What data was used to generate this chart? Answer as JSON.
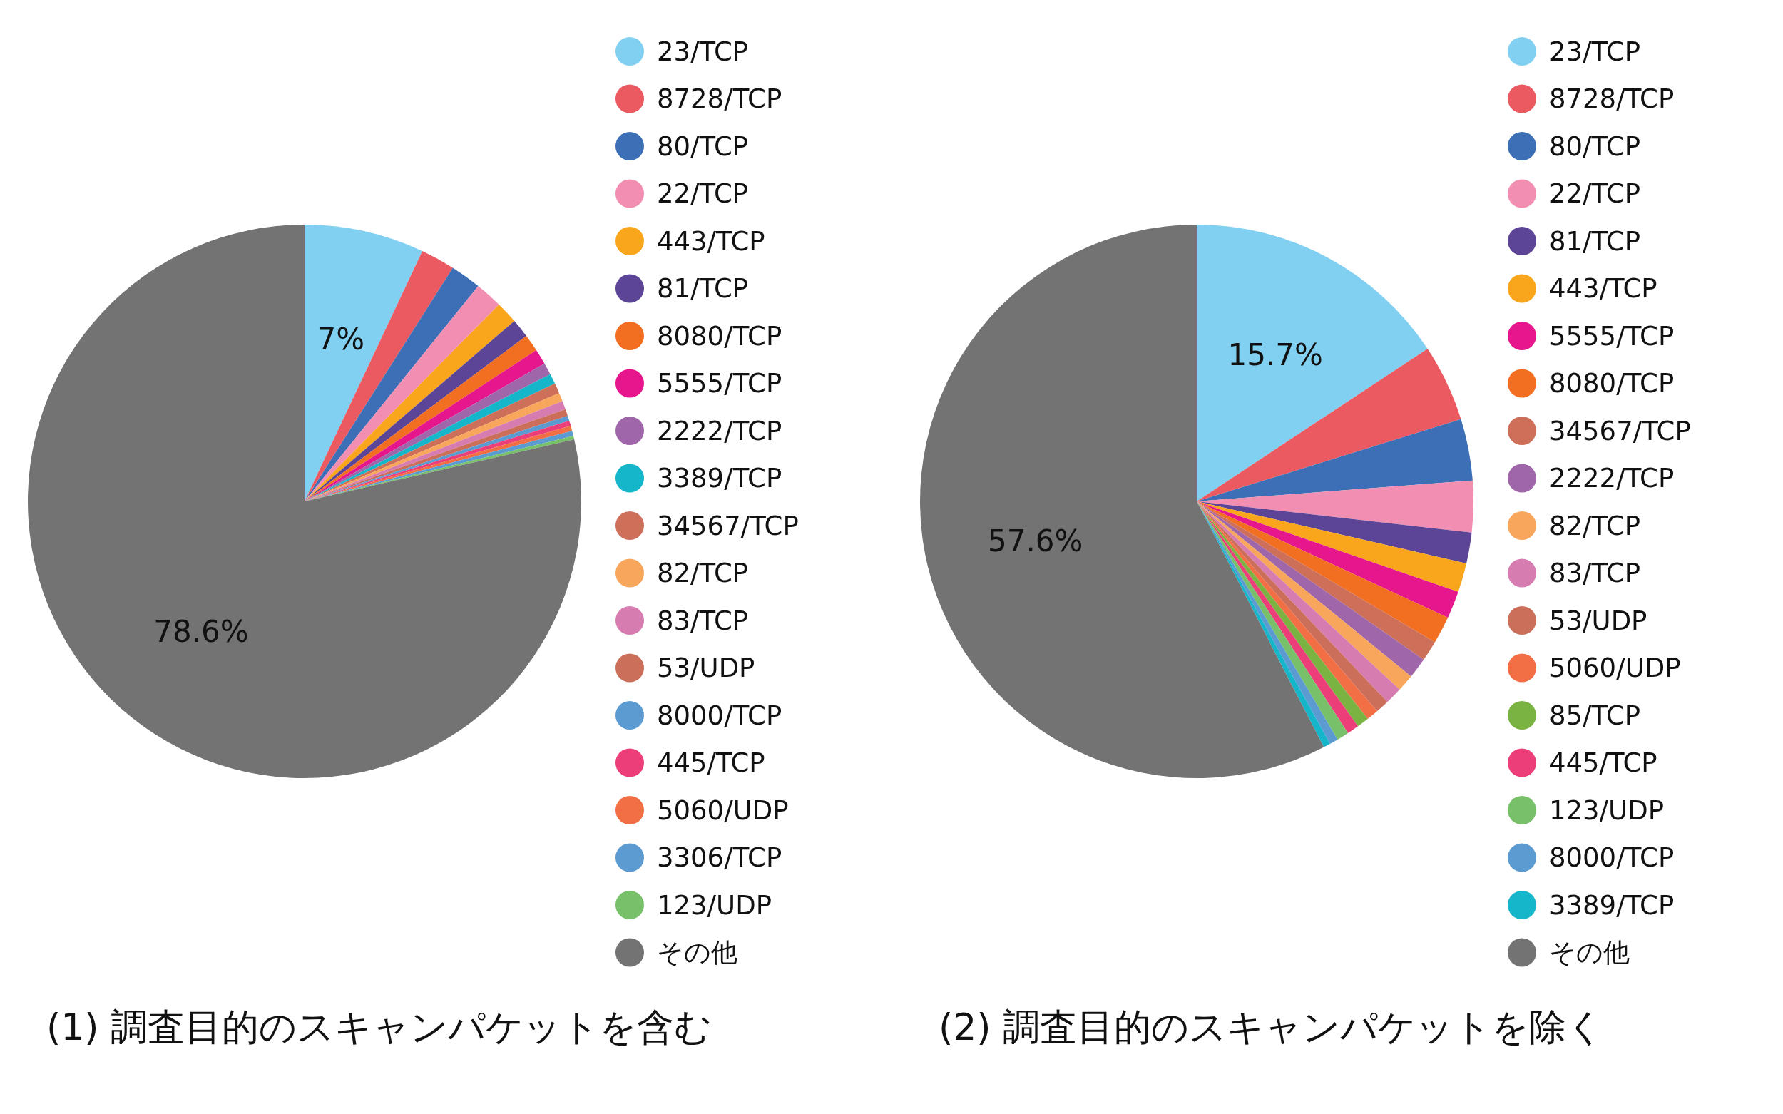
{
  "chart_data": [
    {
      "type": "pie",
      "title": "(1) 調査目的のスキャンパケットを含む",
      "legend": "right",
      "categories": [
        "23/TCP",
        "8728/TCP",
        "80/TCP",
        "22/TCP",
        "443/TCP",
        "81/TCP",
        "8080/TCP",
        "5555/TCP",
        "2222/TCP",
        "3389/TCP",
        "34567/TCP",
        "82/TCP",
        "83/TCP",
        "53/UDP",
        "8000/TCP",
        "445/TCP",
        "5060/UDP",
        "3306/TCP",
        "123/UDP",
        "その他"
      ],
      "values": [
        7,
        2.0,
        1.8,
        1.6,
        1.3,
        1.1,
        1.0,
        0.9,
        0.7,
        0.6,
        0.6,
        0.5,
        0.5,
        0.4,
        0.3,
        0.3,
        0.3,
        0.3,
        0.2,
        78.6
      ],
      "colors": [
        "#81d0f2",
        "#ec5a61",
        "#3c6fb6",
        "#f18eb1",
        "#f9a61c",
        "#5c4597",
        "#f26f22",
        "#e6168c",
        "#9f66a9",
        "#16b6ca",
        "#ce6f5a",
        "#f8a65c",
        "#d67cb0",
        "#cc6f5a",
        "#5b9bd1",
        "#ec3f7a",
        "#f26e45",
        "#5b9bd1",
        "#78c16a",
        "#737373"
      ],
      "value_labels": [
        "7%",
        null,
        null,
        null,
        null,
        null,
        null,
        null,
        null,
        null,
        null,
        null,
        null,
        null,
        null,
        null,
        null,
        null,
        null,
        "78.6%"
      ]
    },
    {
      "type": "pie",
      "title": "(2) 調査目的のスキャンパケットを除く",
      "legend": "right",
      "categories": [
        "23/TCP",
        "8728/TCP",
        "80/TCP",
        "22/TCP",
        "81/TCP",
        "443/TCP",
        "5555/TCP",
        "8080/TCP",
        "34567/TCP",
        "2222/TCP",
        "82/TCP",
        "83/TCP",
        "53/UDP",
        "5060/UDP",
        "85/TCP",
        "445/TCP",
        "123/UDP",
        "8000/TCP",
        "3389/TCP",
        "その他"
      ],
      "values": [
        15.7,
        4.5,
        3.6,
        3.0,
        1.8,
        1.7,
        1.6,
        1.6,
        1.2,
        1.2,
        1.0,
        1.0,
        0.8,
        0.7,
        0.7,
        0.7,
        0.7,
        0.5,
        0.4,
        57.6
      ],
      "colors": [
        "#81d0f2",
        "#ec5a61",
        "#3c6fb6",
        "#f18eb1",
        "#5c4597",
        "#f9a61c",
        "#e6168c",
        "#f26f22",
        "#ce6f5a",
        "#9f66a9",
        "#f8a65c",
        "#d67cb0",
        "#cc6f5a",
        "#f26e45",
        "#7bb342",
        "#ec3f7a",
        "#78c16a",
        "#5b9bd1",
        "#16b6ca",
        "#737373"
      ],
      "value_labels": [
        "15.7%",
        null,
        null,
        null,
        null,
        null,
        null,
        null,
        null,
        null,
        null,
        null,
        null,
        null,
        null,
        null,
        null,
        null,
        null,
        "57.6%"
      ]
    }
  ]
}
